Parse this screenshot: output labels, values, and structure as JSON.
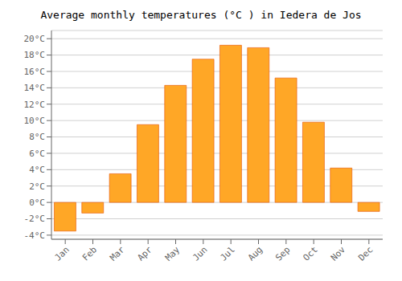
{
  "chart_data": {
    "type": "bar",
    "title": "Average monthly temperatures (°C ) in Iedera de Jos",
    "categories": [
      "Jan",
      "Feb",
      "Mar",
      "Apr",
      "May",
      "Jun",
      "Jul",
      "Aug",
      "Sep",
      "Oct",
      "Nov",
      "Dec"
    ],
    "values": [
      -3.5,
      -1.3,
      3.5,
      9.5,
      14.3,
      17.5,
      19.2,
      18.9,
      15.2,
      9.8,
      4.2,
      -1.1
    ],
    "color": "#FFA726",
    "ylim": [
      -4.5,
      21
    ],
    "yticks": [
      {
        "value": -4,
        "label": "-4°C"
      },
      {
        "value": -2,
        "label": "-2°C"
      },
      {
        "value": 0,
        "label": "0°C"
      },
      {
        "value": 2,
        "label": "2°C"
      },
      {
        "value": 4,
        "label": "4°C"
      },
      {
        "value": 6,
        "label": "6°C"
      },
      {
        "value": 8,
        "label": "8°C"
      },
      {
        "value": 10,
        "label": "10°C"
      },
      {
        "value": 12,
        "label": "12°C"
      },
      {
        "value": 14,
        "label": "14°C"
      },
      {
        "value": 16,
        "label": "16°C"
      },
      {
        "value": 18,
        "label": "18°C"
      },
      {
        "value": 20,
        "label": "20°C"
      }
    ],
    "grid": true
  }
}
